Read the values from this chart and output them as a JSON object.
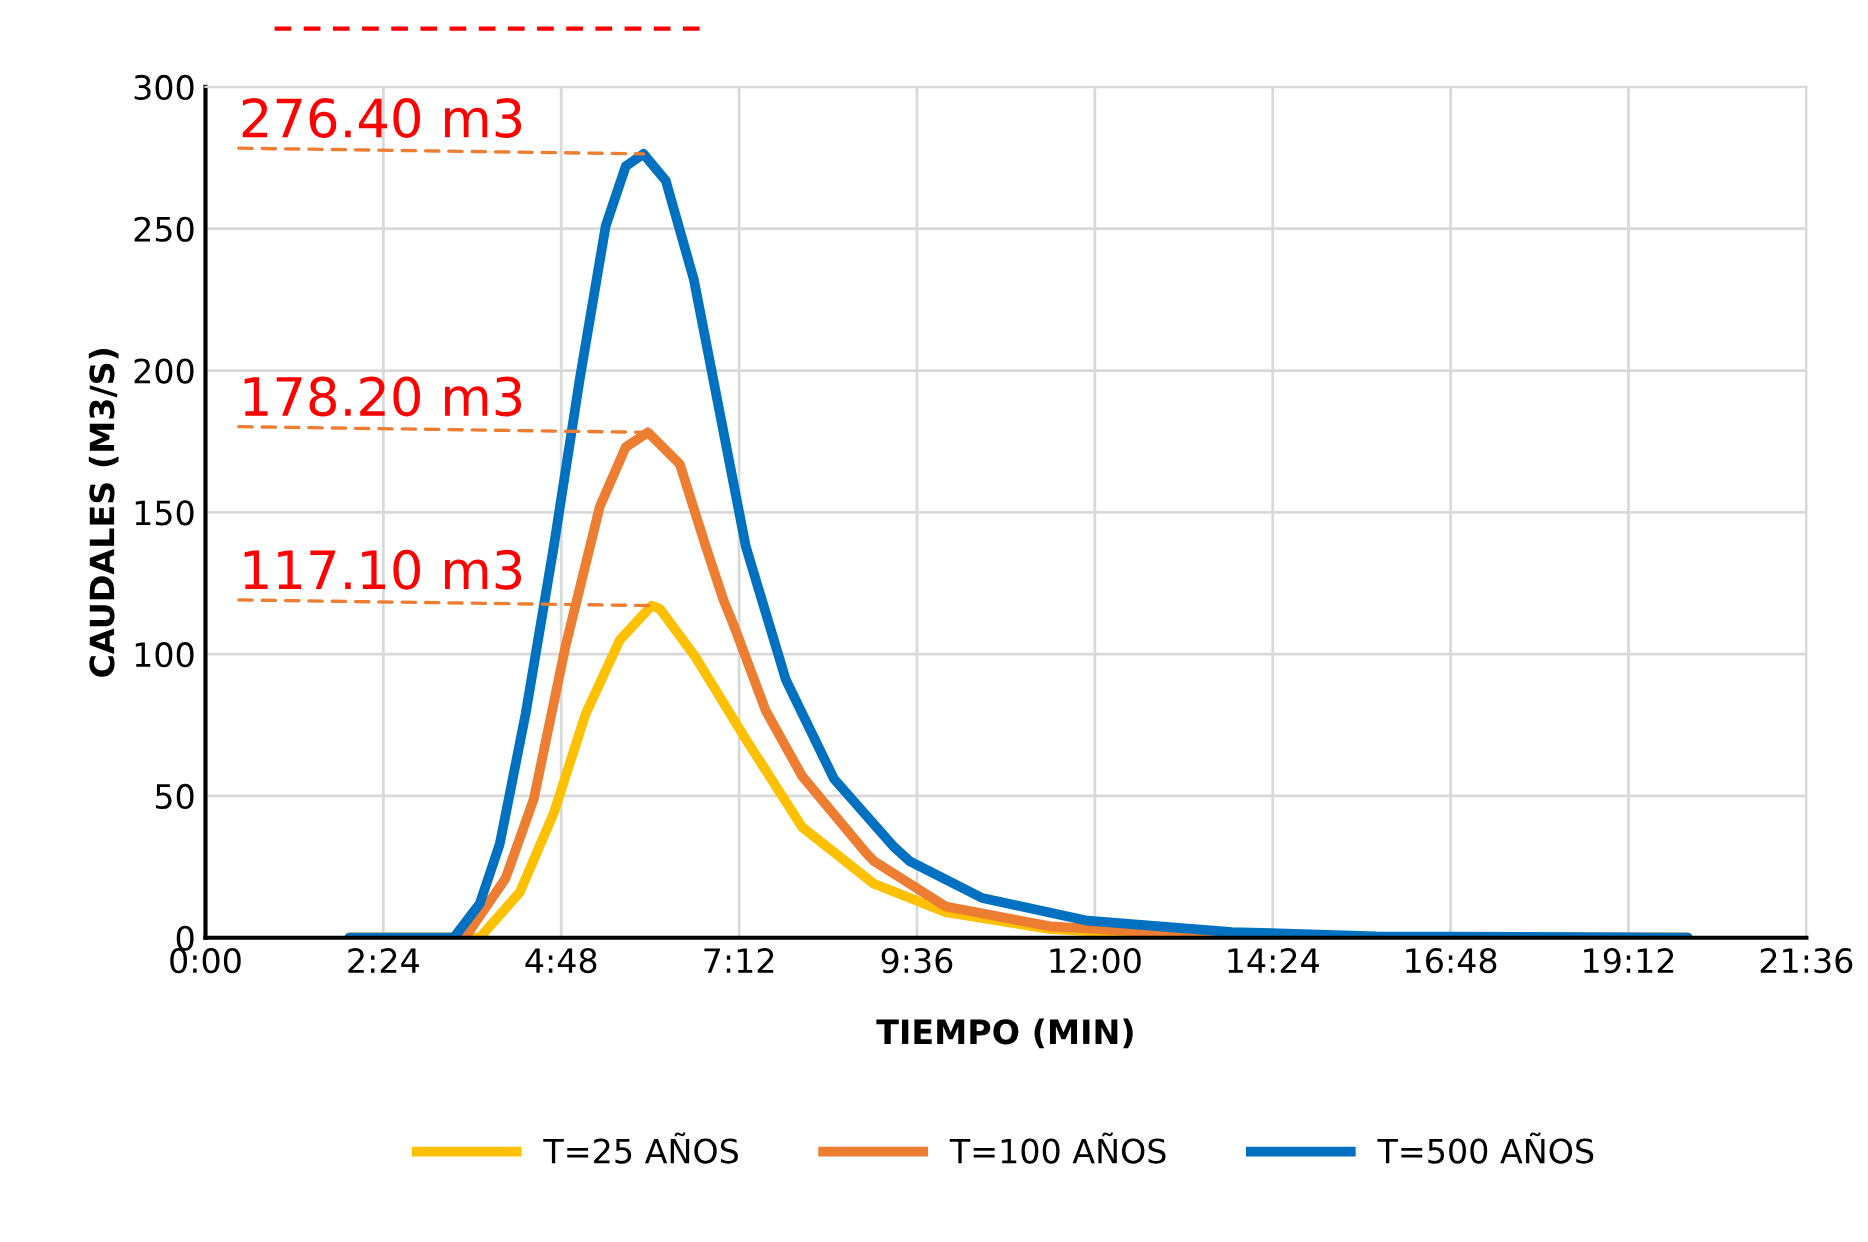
{
  "chart_data": {
    "type": "line",
    "xlabel": "TIEMPO (MIN)",
    "ylabel": "CAUDALES (M3/S)",
    "xlim": [
      0,
      21.6
    ],
    "xticks": [
      {
        "value": 0,
        "label": "0:00"
      },
      {
        "value": 2.4,
        "label": "2:24"
      },
      {
        "value": 4.8,
        "label": "4:48"
      },
      {
        "value": 7.2,
        "label": "7:12"
      },
      {
        "value": 9.6,
        "label": "9:36"
      },
      {
        "value": 12,
        "label": "12:00"
      },
      {
        "value": 14.4,
        "label": "14:24"
      },
      {
        "value": 16.8,
        "label": "16:48"
      },
      {
        "value": 19.2,
        "label": "19:12"
      },
      {
        "value": 21.6,
        "label": "21:36"
      }
    ],
    "ylim": [
      0,
      300
    ],
    "yticks": [
      0,
      50,
      100,
      150,
      200,
      250,
      300
    ],
    "grid": true,
    "legend": "bottom",
    "marker": "none",
    "line_style": "solid",
    "series": [
      {
        "name": "T=25 AÑOS",
        "color": "#ffc000",
        "x": [
          1.94,
          3.7,
          4.24,
          4.7,
          5.13,
          5.59,
          6.02,
          6.13,
          6.61,
          7.29,
          8.05,
          9.02,
          9.99,
          11.4,
          12.9,
          15.8,
          20.0
        ],
        "values": [
          0,
          0,
          16,
          44,
          79,
          105,
          117.1,
          116,
          99,
          70,
          39,
          19,
          9,
          3,
          1,
          0,
          0
        ]
      },
      {
        "name": "T=100 AÑOS",
        "color": "#ed7d31",
        "x": [
          1.94,
          3.5,
          4.05,
          4.43,
          4.86,
          5.32,
          5.67,
          5.97,
          6.4,
          6.75,
          6.99,
          7.13,
          7.56,
          8.05,
          8.91,
          9.02,
          9.99,
          11.4,
          13.4,
          15.8,
          20.0
        ],
        "values": [
          0,
          0,
          21,
          49,
          103,
          152,
          173,
          178.2,
          167,
          138,
          119,
          110,
          80,
          57,
          30,
          27,
          11,
          4,
          1,
          0,
          0
        ]
      },
      {
        "name": "T=500 AÑOS",
        "color": "#0070c0",
        "x": [
          1.94,
          3.35,
          3.7,
          3.97,
          4.32,
          4.7,
          5.05,
          5.4,
          5.67,
          5.91,
          6.21,
          6.59,
          6.94,
          7.29,
          7.83,
          8.48,
          9.29,
          9.5,
          10.48,
          11.9,
          13.85,
          15.8,
          20.0
        ],
        "values": [
          0,
          0,
          12,
          33,
          79,
          138,
          197,
          251,
          272,
          276.4,
          267,
          232,
          185,
          138,
          91,
          56,
          32,
          27,
          14,
          6,
          2,
          0.5,
          0
        ]
      }
    ],
    "annotations": [
      {
        "text": "276.40 m3",
        "x": 5.91,
        "y": 276.4
      },
      {
        "text": "178.20 m3",
        "x": 5.97,
        "y": 178.2
      },
      {
        "text": "117.10 m3",
        "x": 6.02,
        "y": 117.1
      }
    ]
  }
}
